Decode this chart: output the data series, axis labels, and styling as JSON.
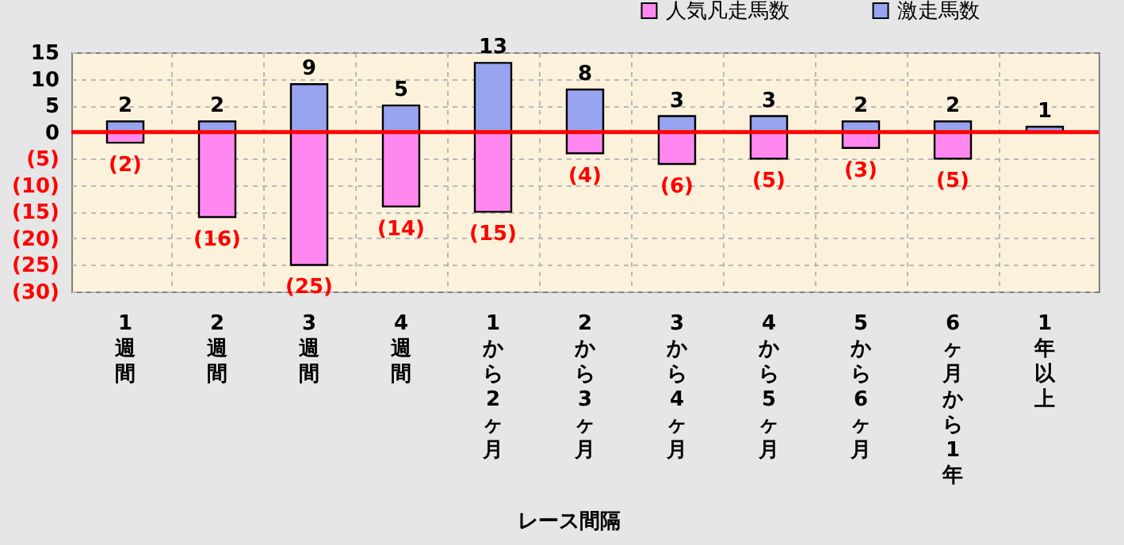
{
  "chart_data": {
    "type": "bar",
    "xlabel": "レース間隔",
    "categories": [
      "1週間",
      "2週間",
      "3週間",
      "4週間",
      "1から2ヶ月",
      "2から3ヶ月",
      "3から4ヶ月",
      "4から5ヶ月",
      "5から6ヶ月",
      "6ヶ月から1年",
      "1年以上"
    ],
    "series": [
      {
        "name": "人気凡走馬数",
        "color": "#ff88f0",
        "values": [
          -2,
          -16,
          -25,
          -14,
          -15,
          -4,
          -6,
          -5,
          -3,
          -5,
          null
        ],
        "value_labels": [
          "(2)",
          "(16)",
          "(25)",
          "(14)",
          "(15)",
          "(4)",
          "(6)",
          "(5)",
          "(3)",
          "(5)",
          null
        ]
      },
      {
        "name": "激走馬数",
        "color": "#98a4f0",
        "values": [
          2,
          2,
          9,
          5,
          13,
          8,
          3,
          3,
          2,
          2,
          1
        ],
        "value_labels": [
          "2",
          "2",
          "9",
          "5",
          "13",
          "8",
          "3",
          "3",
          "2",
          "2",
          "1"
        ]
      }
    ],
    "stacked": true,
    "ylim": [
      -30,
      15
    ],
    "yticks": [
      15,
      10,
      5,
      0,
      {
        "value": -5,
        "label": "(5)"
      },
      {
        "value": -10,
        "label": "(10)"
      },
      {
        "value": -15,
        "label": "(15)"
      },
      {
        "value": -20,
        "label": "(20)"
      },
      {
        "value": -25,
        "label": "(25)"
      },
      {
        "value": -30,
        "label": "(30)"
      }
    ],
    "ref_lines": [
      {
        "axis": "y",
        "value": 0,
        "color": "#ff0000"
      }
    ],
    "grid": true,
    "legend": "top right"
  }
}
